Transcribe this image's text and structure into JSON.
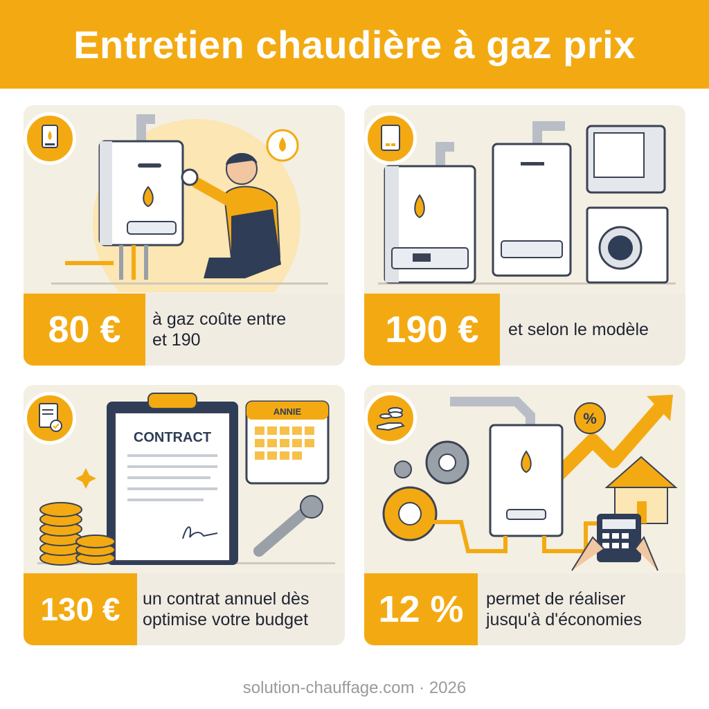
{
  "header": {
    "title": "Entretien chaudière à gaz prix"
  },
  "cards": [
    {
      "value": "80 €",
      "line1": "à gaz coûte entre",
      "line2": "et 190",
      "icon": "boiler-flame-icon"
    },
    {
      "value": "190 €",
      "line1": "et selon le modèle",
      "line2": "",
      "icon": "boiler-icon"
    },
    {
      "value": "130 €",
      "line1": "un contrat annuel dès",
      "line2": "optimise votre budget",
      "icon": "document-check-icon",
      "contract_title": "CONTRACT",
      "calendar_title": "ANNIE"
    },
    {
      "value": "12 %",
      "line1": "permet de réaliser",
      "line2": "jusqu'à d'économies",
      "icon": "money-hand-icon",
      "percent_label": "%"
    }
  ],
  "footer": {
    "text": "solution-chauffage.com · 2026"
  },
  "colors": {
    "accent": "#f3aa12",
    "card_bg": "#f4efe3",
    "text": "#1f2430",
    "navy": "#2f3d57"
  }
}
